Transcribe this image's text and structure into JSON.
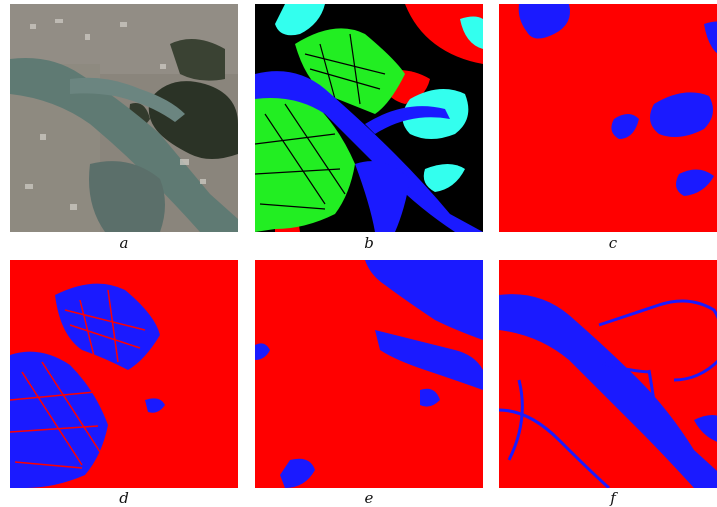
{
  "figure": {
    "panels": [
      {
        "id": "a",
        "caption": "a",
        "content": "satellite-image"
      },
      {
        "id": "b",
        "caption": "b",
        "content": "multiclass-classification-map"
      },
      {
        "id": "c",
        "caption": "c",
        "content": "binary-mask"
      },
      {
        "id": "d",
        "caption": "d",
        "content": "binary-mask"
      },
      {
        "id": "e",
        "caption": "e",
        "content": "binary-mask"
      },
      {
        "id": "f",
        "caption": "f",
        "content": "binary-mask"
      }
    ]
  },
  "colors": {
    "background_class": "#ff0000",
    "target_class": "#1a1aff",
    "vegetation_class": "#22ee22",
    "cloud_class": "#33ffee",
    "other_class": "#000000",
    "water": "#5f7a73",
    "city": "#8f8a82",
    "forest": "#2b3326"
  }
}
